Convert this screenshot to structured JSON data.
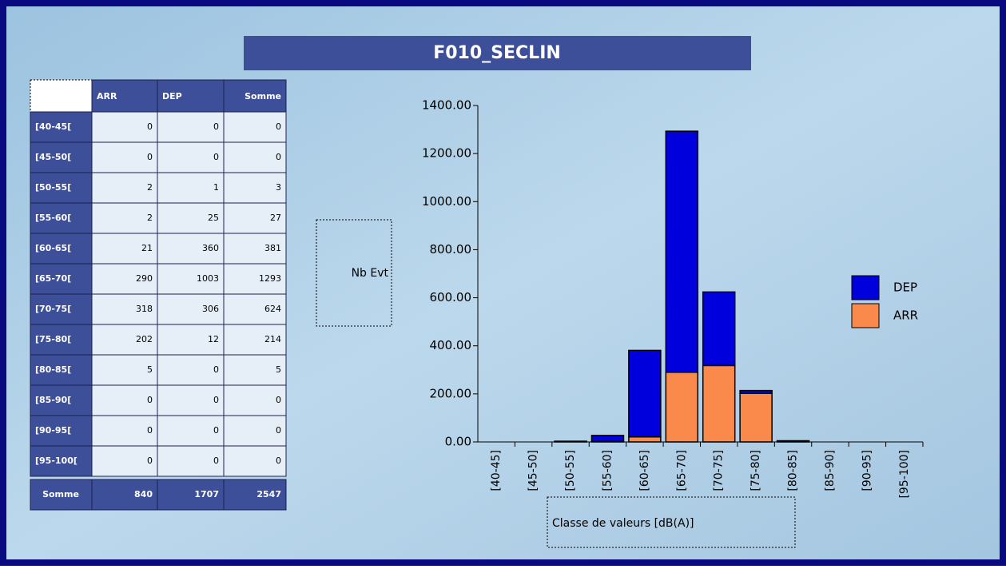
{
  "table": {
    "header": [
      "ARR",
      "DEP",
      "Somme"
    ],
    "rows": [
      {
        "label": "[40-45[",
        "cells": [
          0,
          0,
          0
        ]
      },
      {
        "label": "[45-50[",
        "cells": [
          0,
          0,
          0
        ]
      },
      {
        "label": "[50-55[",
        "cells": [
          2,
          1,
          3
        ]
      },
      {
        "label": "[55-60[",
        "cells": [
          2,
          25,
          27
        ]
      },
      {
        "label": "[60-65[",
        "cells": [
          21,
          360,
          381
        ]
      },
      {
        "label": "[65-70[",
        "cells": [
          290,
          1003,
          1293
        ]
      },
      {
        "label": "[70-75[",
        "cells": [
          318,
          306,
          624
        ]
      },
      {
        "label": "[75-80[",
        "cells": [
          202,
          12,
          214
        ]
      },
      {
        "label": "[80-85[",
        "cells": [
          5,
          0,
          5
        ]
      },
      {
        "label": "[85-90[",
        "cells": [
          0,
          0,
          0
        ]
      },
      {
        "label": "[90-95[",
        "cells": [
          0,
          0,
          0
        ]
      },
      {
        "label": "[95-100[",
        "cells": [
          0,
          0,
          0
        ]
      },
      {
        "label": "Somme",
        "cells": [
          840,
          1707,
          2547
        ]
      }
    ]
  },
  "chart_data": {
    "type": "stacked_bar",
    "title": "F010_SECLIN",
    "y_label": "Nb Evt",
    "x_label": "Classe de valeurs [dB(A)]",
    "categories": [
      "[40-45]",
      "[45-50]",
      "[50-55]",
      "[55-60]",
      "[60-65]",
      "[65-70]",
      "[70-75]",
      "[75-80]",
      "[80-85]",
      "[85-90]",
      "[90-95]",
      "[95-100]"
    ],
    "series": [
      {
        "name": "ARR",
        "color": "#f98a4c",
        "values": [
          0,
          0,
          2,
          2,
          21,
          290,
          318,
          202,
          5,
          0,
          0,
          0
        ]
      },
      {
        "name": "DEP",
        "color": "#0000dd",
        "values": [
          0,
          0,
          1,
          25,
          360,
          1003,
          306,
          12,
          0,
          0,
          0,
          0
        ]
      }
    ],
    "ylim": [
      0,
      1400
    ],
    "yticks": [
      {
        "value": 0,
        "label": "0.00"
      },
      {
        "value": 200,
        "label": "200.00"
      },
      {
        "value": 400,
        "label": "400.00"
      },
      {
        "value": 600,
        "label": "600.00"
      },
      {
        "value": 800,
        "label": "800.00"
      },
      {
        "value": 1000,
        "label": "1000.00"
      },
      {
        "value": 1200,
        "label": "1200.00"
      },
      {
        "value": 1400,
        "label": "1400.00"
      }
    ],
    "legend": "right"
  }
}
